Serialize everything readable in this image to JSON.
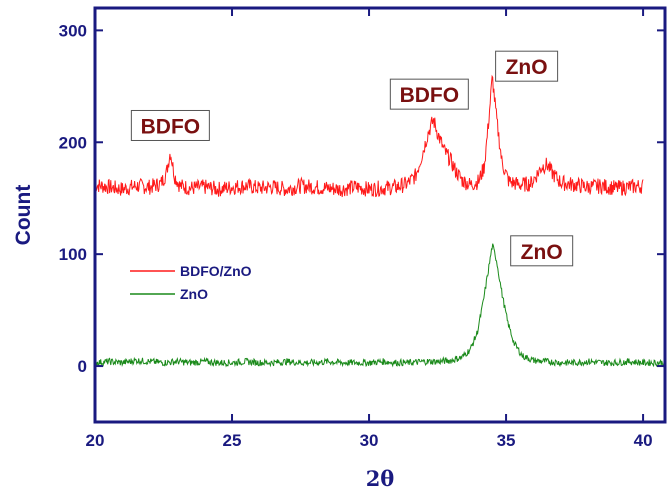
{
  "chart_data": {
    "type": "line",
    "title": "",
    "xlabel": "2θ",
    "ylabel": "Count",
    "xlim": [
      20,
      40.8
    ],
    "ylim": [
      -50,
      320
    ],
    "xticks": [
      20,
      25,
      30,
      35,
      40
    ],
    "yticks": [
      0,
      100,
      200,
      300
    ],
    "grid": false,
    "legend_position": "middle-left",
    "series": [
      {
        "name": "BDFO/ZnO",
        "color": "#ff1a1a",
        "points": [
          [
            20.0,
            162
          ],
          [
            20.5,
            160
          ],
          [
            21.0,
            158
          ],
          [
            21.5,
            161
          ],
          [
            22.0,
            160
          ],
          [
            22.4,
            163
          ],
          [
            22.6,
            172
          ],
          [
            22.75,
            192
          ],
          [
            22.9,
            170
          ],
          [
            23.1,
            161
          ],
          [
            23.5,
            159
          ],
          [
            24.0,
            160
          ],
          [
            24.5,
            158
          ],
          [
            25.0,
            160
          ],
          [
            25.5,
            161
          ],
          [
            26.0,
            159
          ],
          [
            26.5,
            160
          ],
          [
            27.0,
            158
          ],
          [
            27.5,
            161
          ],
          [
            28.0,
            160
          ],
          [
            28.5,
            159
          ],
          [
            29.0,
            158
          ],
          [
            29.5,
            160
          ],
          [
            30.0,
            158
          ],
          [
            30.5,
            159
          ],
          [
            31.0,
            160
          ],
          [
            31.4,
            163
          ],
          [
            31.7,
            170
          ],
          [
            31.95,
            190
          ],
          [
            32.15,
            208
          ],
          [
            32.35,
            220
          ],
          [
            32.55,
            205
          ],
          [
            32.75,
            192
          ],
          [
            32.95,
            185
          ],
          [
            33.15,
            175
          ],
          [
            33.4,
            166
          ],
          [
            33.7,
            162
          ],
          [
            34.0,
            165
          ],
          [
            34.2,
            178
          ],
          [
            34.35,
            215
          ],
          [
            34.5,
            258
          ],
          [
            34.65,
            222
          ],
          [
            34.85,
            182
          ],
          [
            35.1,
            165
          ],
          [
            35.5,
            162
          ],
          [
            35.9,
            163
          ],
          [
            36.1,
            170
          ],
          [
            36.3,
            178
          ],
          [
            36.5,
            180
          ],
          [
            36.7,
            172
          ],
          [
            37.0,
            164
          ],
          [
            37.5,
            162
          ],
          [
            38.0,
            160
          ],
          [
            38.5,
            161
          ],
          [
            39.0,
            159
          ],
          [
            39.5,
            160
          ],
          [
            40.0,
            161
          ]
        ]
      },
      {
        "name": "ZnO",
        "color": "#1a8a1a",
        "points": [
          [
            20.0,
            3
          ],
          [
            20.5,
            4
          ],
          [
            21.0,
            3
          ],
          [
            21.5,
            5
          ],
          [
            22.0,
            4
          ],
          [
            22.5,
            3
          ],
          [
            23.0,
            4
          ],
          [
            23.5,
            3
          ],
          [
            24.0,
            4
          ],
          [
            24.5,
            3
          ],
          [
            25.0,
            3
          ],
          [
            25.5,
            4
          ],
          [
            26.0,
            3
          ],
          [
            26.5,
            3
          ],
          [
            27.0,
            4
          ],
          [
            27.5,
            3
          ],
          [
            28.0,
            3
          ],
          [
            28.5,
            4
          ],
          [
            29.0,
            3
          ],
          [
            29.5,
            3
          ],
          [
            30.0,
            3
          ],
          [
            30.5,
            4
          ],
          [
            31.0,
            3
          ],
          [
            31.5,
            3
          ],
          [
            32.0,
            4
          ],
          [
            32.5,
            4
          ],
          [
            33.0,
            5
          ],
          [
            33.4,
            8
          ],
          [
            33.7,
            15
          ],
          [
            33.95,
            30
          ],
          [
            34.15,
            55
          ],
          [
            34.35,
            85
          ],
          [
            34.5,
            108
          ],
          [
            34.65,
            95
          ],
          [
            34.85,
            65
          ],
          [
            35.05,
            40
          ],
          [
            35.3,
            20
          ],
          [
            35.6,
            9
          ],
          [
            36.0,
            5
          ],
          [
            36.5,
            4
          ],
          [
            37.0,
            3
          ],
          [
            37.5,
            3
          ],
          [
            38.0,
            4
          ],
          [
            38.5,
            3
          ],
          [
            39.0,
            3
          ],
          [
            39.5,
            4
          ],
          [
            40.0,
            3
          ],
          [
            40.8,
            3
          ]
        ]
      }
    ],
    "annotations": [
      {
        "text": "BDFO",
        "x": 22.75,
        "y": 215
      },
      {
        "text": "BDFO",
        "x": 32.2,
        "y": 243
      },
      {
        "text": "ZnO",
        "x": 35.75,
        "y": 268
      },
      {
        "text": "ZnO",
        "x": 36.3,
        "y": 103
      }
    ]
  }
}
